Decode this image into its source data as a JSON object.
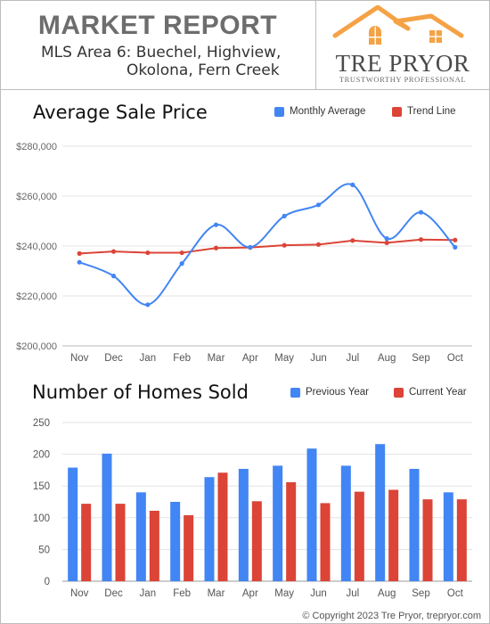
{
  "header": {
    "title": "MARKET REPORT",
    "area_line1": "MLS Area 6:  Buechel, Highview,",
    "area_line2": "Okolona, Fern Creek"
  },
  "logo": {
    "name": "TRE PRYOR",
    "tagline": "TRUSTWORTHY PROFESSIONAL"
  },
  "colors": {
    "blue": "#4285f4",
    "red": "#db4437",
    "roof": "#f4a245",
    "grid": "#e3e3e3",
    "axis_text": "#666666"
  },
  "chart_data": [
    {
      "type": "line",
      "title": "Average Sale Price",
      "categories": [
        "Nov",
        "Dec",
        "Jan",
        "Feb",
        "Mar",
        "Apr",
        "May",
        "Jun",
        "Jul",
        "Aug",
        "Sep",
        "Oct"
      ],
      "series": [
        {
          "name": "Monthly Average",
          "color": "#4285f4",
          "smooth": true,
          "values": [
            233500,
            228000,
            216500,
            233000,
            248500,
            239500,
            252000,
            256500,
            264500,
            243000,
            253500,
            239500
          ]
        },
        {
          "name": "Trend Line",
          "color": "#db4437",
          "smooth": false,
          "values": [
            237000,
            237800,
            237300,
            237300,
            239200,
            239400,
            240300,
            240600,
            242200,
            241300,
            242600,
            242400
          ]
        }
      ],
      "yticks": [
        "$280,000",
        "$260,000",
        "$240,000",
        "$220,000",
        "$200,000"
      ],
      "ylim": [
        200000,
        280000
      ],
      "grid": true,
      "legend": "top-right"
    },
    {
      "type": "bar",
      "title": "Number of Homes Sold",
      "categories": [
        "Nov",
        "Dec",
        "Jan",
        "Feb",
        "Mar",
        "Apr",
        "May",
        "Jun",
        "Jul",
        "Aug",
        "Sep",
        "Oct"
      ],
      "series": [
        {
          "name": "Previous Year",
          "color": "#4285f4",
          "values": [
            179,
            201,
            140,
            125,
            164,
            177,
            182,
            209,
            182,
            216,
            177,
            140
          ]
        },
        {
          "name": "Current Year",
          "color": "#db4437",
          "values": [
            122,
            122,
            111,
            104,
            171,
            126,
            156,
            123,
            141,
            144,
            129,
            129
          ]
        }
      ],
      "yticks": [
        "250",
        "200",
        "150",
        "100",
        "50",
        "0"
      ],
      "ylim": [
        0,
        250
      ],
      "grid": true,
      "legend": "top-right"
    }
  ],
  "footer": "© Copyright 2023 Tre Pryor, trepryor.com"
}
